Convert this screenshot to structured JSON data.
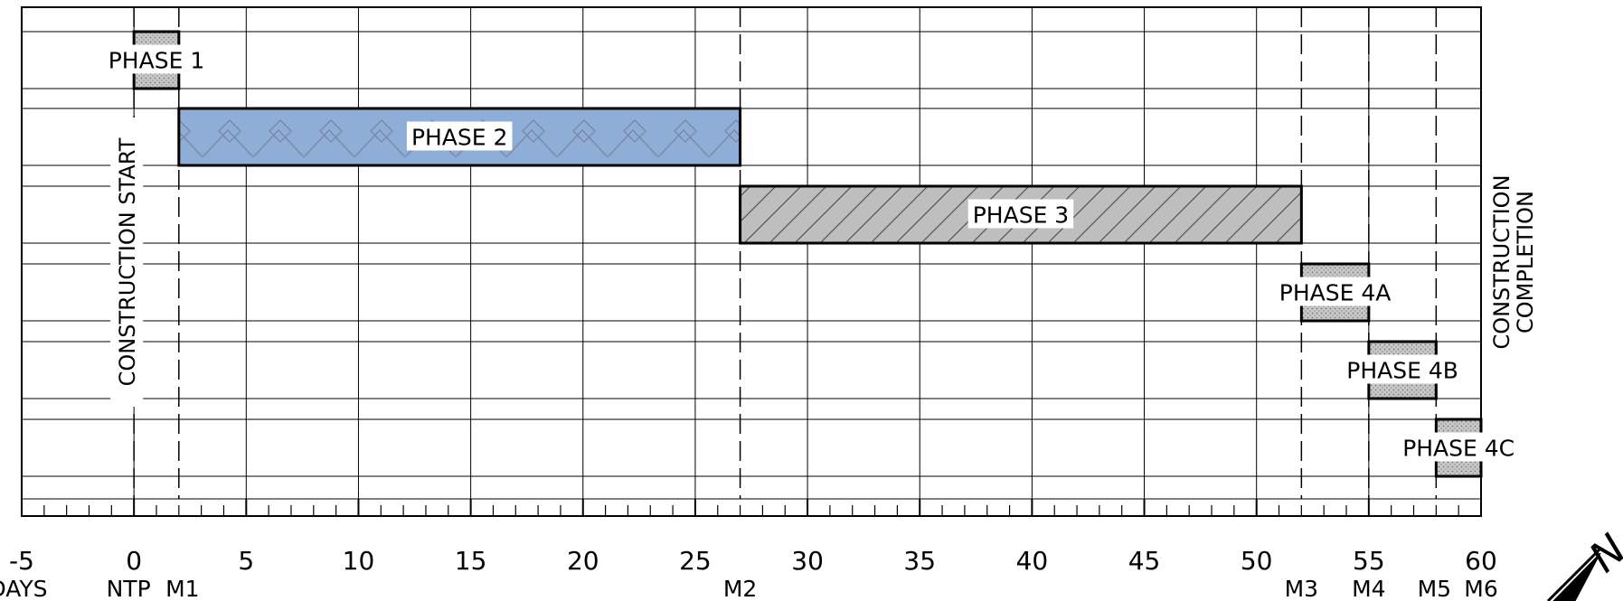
{
  "chart_data": {
    "type": "gantt",
    "x_range": [
      -5,
      60
    ],
    "x_ticks": [
      "-5",
      "0",
      "5",
      "10",
      "15",
      "20",
      "25",
      "30",
      "35",
      "40",
      "45",
      "50",
      "55",
      "60"
    ],
    "x_tick_values": [
      -5,
      0,
      5,
      10,
      15,
      20,
      25,
      30,
      35,
      40,
      45,
      50,
      55,
      60
    ],
    "axis_unit_label": "DAYS",
    "milestones": [
      {
        "label": "NTP",
        "x": 0
      },
      {
        "label": "M1",
        "x": 2
      },
      {
        "label": "M2",
        "x": 27
      },
      {
        "label": "M3",
        "x": 52
      },
      {
        "label": "M4",
        "x": 55
      },
      {
        "label": "M5",
        "x": 58
      },
      {
        "label": "M6",
        "x": 60
      }
    ],
    "phases": [
      {
        "label": "PHASE 1",
        "start": 0,
        "end": 2,
        "row": 0,
        "fill": "#c8c8c8",
        "pattern": "dots"
      },
      {
        "label": "PHASE 2",
        "start": 2,
        "end": 27,
        "row": 1,
        "fill": "#8eaed8",
        "pattern": "diamond"
      },
      {
        "label": "PHASE 3",
        "start": 27,
        "end": 52,
        "row": 2,
        "fill": "#bebebe",
        "pattern": "hatch"
      },
      {
        "label": "PHASE 4A",
        "start": 52,
        "end": 55,
        "row": 3,
        "fill": "#c8c8c8",
        "pattern": "dots"
      },
      {
        "label": "PHASE 4B",
        "start": 55,
        "end": 58,
        "row": 4,
        "fill": "#c8c8c8",
        "pattern": "dots"
      },
      {
        "label": "PHASE 4C",
        "start": 58,
        "end": 60,
        "row": 5,
        "fill": "#c8c8c8",
        "pattern": "dots"
      }
    ],
    "start_label": "CONSTRUCTION START",
    "completion_label_line1": "CONSTRUCTION",
    "completion_label_line2": "COMPLETION",
    "grid": true,
    "north_arrow_letter": "N"
  }
}
